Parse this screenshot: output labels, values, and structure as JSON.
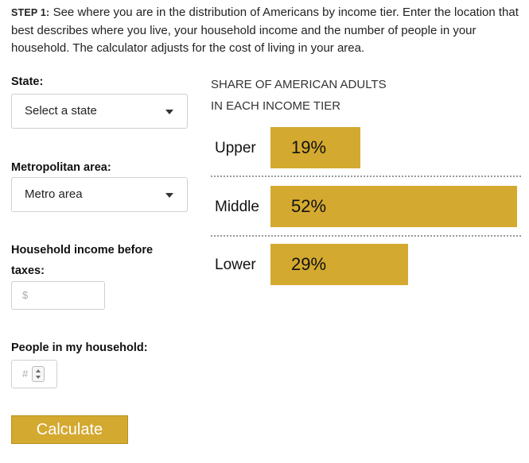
{
  "intro": {
    "step": "STEP 1:",
    "text": " See where you are in the distribution of Americans by income tier. Enter the location that best describes where you live, your household income and the number of people in your household. The calculator adjusts for the cost of living in your area."
  },
  "form": {
    "state_label": "State:",
    "state_value": "Select a state",
    "metro_label": "Metropolitan area:",
    "metro_value": "Metro area",
    "income_label_1": "Household income before",
    "income_label_2": "taxes:",
    "income_placeholder": "$",
    "people_label": "People in my household:",
    "people_placeholder": "#",
    "calculate_label": "Calculate"
  },
  "chart_data": {
    "type": "bar",
    "title_line1": "SHARE OF AMERICAN ADULTS",
    "title_line2": "IN EACH INCOME TIER",
    "categories": [
      "Upper",
      "Middle",
      "Lower"
    ],
    "values": [
      19,
      52,
      29
    ],
    "value_labels": [
      "19%",
      "52%",
      "29%"
    ],
    "unit": "%",
    "bar_color": "#d4a930"
  }
}
